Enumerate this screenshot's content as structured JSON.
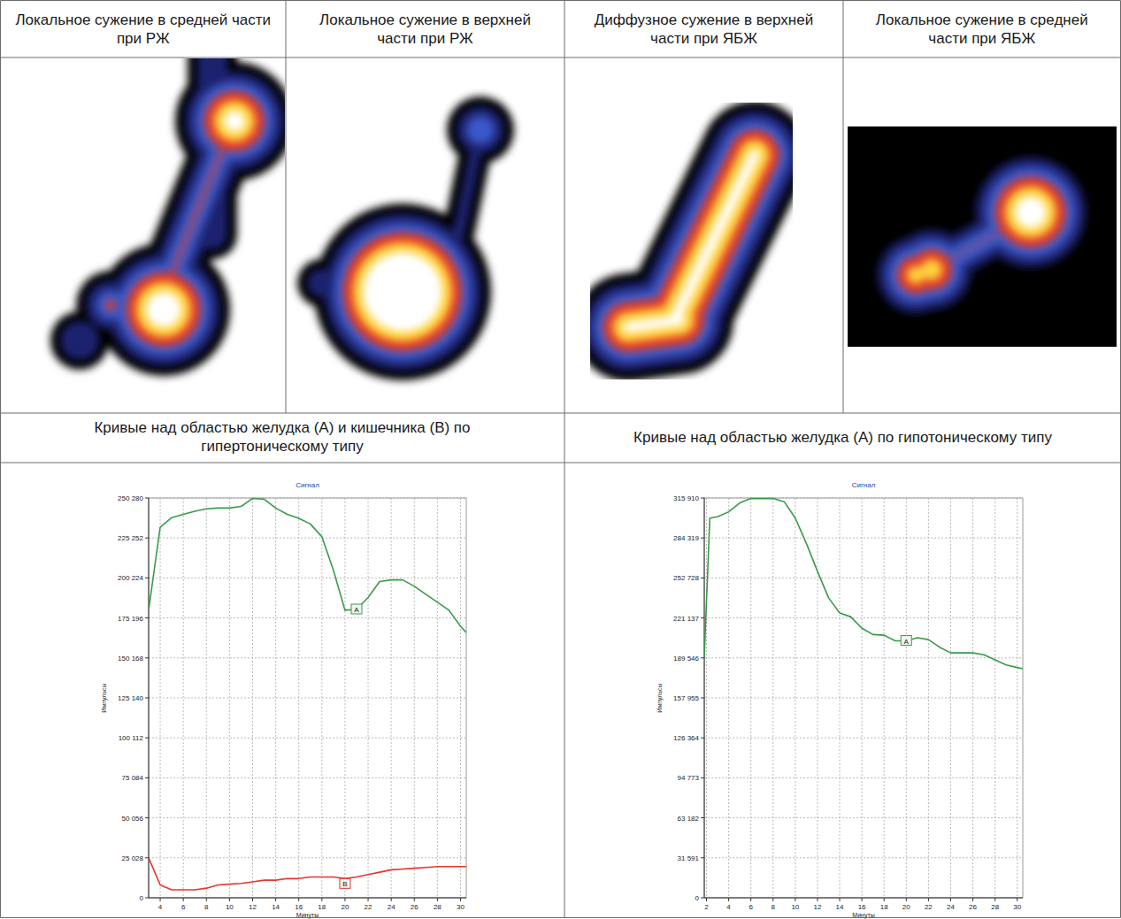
{
  "table": {
    "image_captions": [
      "Локальное сужение в средней части при РЖ",
      "Локальное сужение в верхней части при РЖ",
      "Диффузное сужение в верхней части при ЯБЖ",
      "Локальное сужение в средней части при ЯБЖ"
    ],
    "chart_captions": [
      "Кривые над областью желудка (А) и кишечника (В) по гипертоническому типу",
      "Кривые над областью желудка (А) по гипотоническому типу"
    ]
  },
  "chart_data": [
    {
      "type": "line",
      "title": "Сигнал",
      "x_label": "Минуты",
      "y_label": "Импульсы",
      "x": [
        3,
        4,
        5,
        6,
        7,
        8,
        9,
        10,
        11,
        12,
        13,
        14,
        15,
        16,
        17,
        18,
        19,
        20,
        21,
        22,
        23,
        24,
        25,
        26,
        27,
        28,
        29,
        30,
        30.5
      ],
      "series": [
        {
          "name": "A",
          "color": "#3a9a4a",
          "values": [
            180000,
            232000,
            238000,
            240000,
            242000,
            243500,
            244000,
            244000,
            245000,
            250000,
            249500,
            244000,
            240000,
            237500,
            234000,
            226000,
            205000,
            180000,
            180500,
            188000,
            198000,
            199000,
            199000,
            195000,
            190000,
            185000,
            180000,
            170000,
            166000
          ]
        },
        {
          "name": "B",
          "color": "#e8352b",
          "values": [
            25000,
            8000,
            5000,
            5000,
            5000,
            6000,
            8000,
            8500,
            9000,
            10000,
            11000,
            11000,
            12000,
            12000,
            13000,
            13000,
            13000,
            12000,
            13000,
            14500,
            16000,
            17500,
            18000,
            18500,
            19000,
            19500,
            19500,
            19500,
            19500
          ]
        }
      ],
      "xlim": [
        3,
        30.5
      ],
      "ylim": [
        0,
        250280
      ],
      "xticks": [
        4,
        6,
        8,
        10,
        12,
        14,
        16,
        18,
        20,
        22,
        24,
        26,
        28,
        30
      ],
      "yticks": [
        0,
        {
          "value": 25028,
          "label": "25 028"
        },
        {
          "value": 50056,
          "label": "50 056"
        },
        {
          "value": 75084,
          "label": "75 084"
        },
        {
          "value": 100112,
          "label": "100 112"
        },
        {
          "value": 125140,
          "label": "125 140"
        },
        {
          "value": 150168,
          "label": "150 168"
        },
        {
          "value": 175196,
          "label": "175 196"
        },
        {
          "value": 200224,
          "label": "200 224"
        },
        {
          "value": 225252,
          "label": "225 252"
        },
        {
          "value": 250280,
          "label": "250 280"
        }
      ],
      "grid": true
    },
    {
      "type": "line",
      "title": "Сигнал",
      "x_label": "Минуты",
      "y_label": "Импульсы",
      "x": [
        1.8,
        2.3,
        3,
        4,
        5,
        6,
        7,
        8,
        9,
        10,
        11,
        12,
        13,
        14,
        15,
        16,
        17,
        18,
        19,
        20,
        21,
        22,
        23,
        24,
        25,
        26,
        27,
        28,
        29,
        30,
        30.5
      ],
      "series": [
        {
          "name": "A",
          "color": "#3a9a4a",
          "values": [
            190000,
            300000,
            301000,
            305000,
            312000,
            315500,
            315500,
            315500,
            313000,
            300000,
            280000,
            258000,
            237000,
            225000,
            222000,
            213000,
            208000,
            207500,
            203000,
            203000,
            205500,
            204000,
            198000,
            193500,
            193500,
            193500,
            192000,
            188000,
            184000,
            182000,
            181000
          ]
        }
      ],
      "xlim": [
        1.8,
        30.5
      ],
      "ylim": [
        0,
        315910
      ],
      "xticks": [
        2,
        4,
        6,
        8,
        10,
        12,
        14,
        16,
        18,
        20,
        22,
        24,
        26,
        28,
        30
      ],
      "yticks": [
        0,
        {
          "value": 31591,
          "label": "31 591"
        },
        {
          "value": 63182,
          "label": "63 182"
        },
        {
          "value": 94773,
          "label": "94 773"
        },
        {
          "value": 126364,
          "label": "126 364"
        },
        {
          "value": 157955,
          "label": "157 955"
        },
        {
          "value": 189546,
          "label": "189 546"
        },
        {
          "value": 221137,
          "label": "221 137"
        },
        {
          "value": 252728,
          "label": "252 728"
        },
        {
          "value": 284319,
          "label": "284 319"
        },
        {
          "value": 315910,
          "label": "315 910"
        }
      ],
      "grid": true
    }
  ]
}
